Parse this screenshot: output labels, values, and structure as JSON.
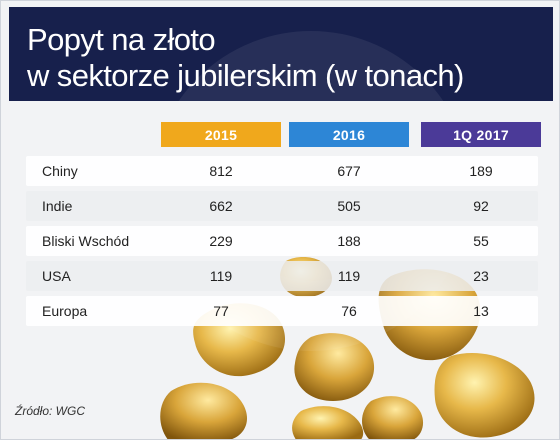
{
  "header": {
    "title_line1": "Popyt na złoto",
    "title_line2": "w sektorze jubilerskim (w tonach)"
  },
  "chart_data": {
    "type": "table",
    "title": "Popyt na złoto w sektorze jubilerskim (w tonach)",
    "columns": [
      {
        "label": "2015",
        "color": "#f0a81c"
      },
      {
        "label": "2016",
        "color": "#2d86d6"
      },
      {
        "label": "1Q 2017",
        "color": "#4b3a98"
      }
    ],
    "rows": [
      {
        "label": "Chiny",
        "values": [
          "812",
          "677",
          "189"
        ]
      },
      {
        "label": "Indie",
        "values": [
          "662",
          "505",
          "92"
        ]
      },
      {
        "label": "Bliski Wschód",
        "values": [
          "229",
          "188",
          "55"
        ]
      },
      {
        "label": "USA",
        "values": [
          "119",
          "119",
          "23"
        ]
      },
      {
        "label": "Europa",
        "values": [
          "77",
          "76",
          "13"
        ]
      }
    ]
  },
  "footer": {
    "source": "Źródło: WGC"
  },
  "colors": {
    "header_bg": "#17204c",
    "gold": "#e0b24a"
  }
}
